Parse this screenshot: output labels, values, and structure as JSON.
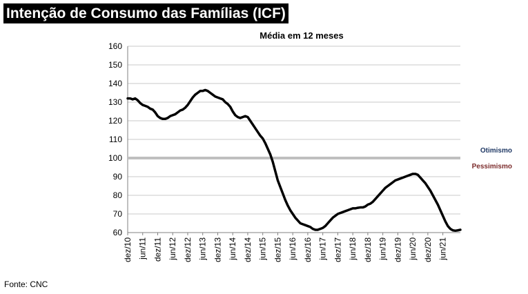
{
  "page": {
    "title": "Intenção de Consumo das Famílias (ICF)",
    "source": "Fonte: CNC"
  },
  "chart_data": {
    "type": "line",
    "title": "Média em 12 meses",
    "xlabel": "",
    "ylabel": "",
    "ylim": [
      60,
      160
    ],
    "yticks": [
      60,
      70,
      80,
      90,
      100,
      110,
      120,
      130,
      140,
      150,
      160
    ],
    "grid": true,
    "x_tick_labels": [
      "dez/10",
      "jun/11",
      "dez/11",
      "jun/12",
      "dez/12",
      "jun/13",
      "dez/13",
      "jun/14",
      "dez/14",
      "jun/15",
      "dez/15",
      "jun/16",
      "dez/16",
      "jun/17",
      "dez/17",
      "jun/18",
      "dez/18",
      "jun/19",
      "dez/19",
      "jun/20",
      "dez/20",
      "jun/21"
    ],
    "series": [
      {
        "values": [
          132,
          132,
          131.5,
          132,
          131,
          129.5,
          128.5,
          128,
          127.5,
          126.5,
          126,
          124.5,
          122.5,
          121.5,
          121,
          121,
          121.5,
          122.5,
          123,
          123.5,
          124.5,
          125.5,
          126,
          127,
          128.5,
          130.5,
          132.5,
          134,
          135,
          136,
          136,
          136.5,
          136,
          135,
          134,
          133,
          132.5,
          132,
          131.5,
          130,
          129,
          127.5,
          125,
          123,
          122,
          121.5,
          122,
          122.5,
          122,
          120,
          118,
          116,
          114,
          112,
          110.5,
          108,
          105,
          102,
          98,
          93,
          88,
          84.5,
          81,
          77.5,
          74.5,
          72,
          70,
          68,
          66.5,
          65,
          64.5,
          64,
          63.5,
          63,
          62,
          61.5,
          61.5,
          62,
          62.5,
          63.5,
          65,
          66.5,
          68,
          69,
          70,
          70.5,
          71,
          71.5,
          72,
          72.5,
          73,
          73,
          73.3,
          73.5,
          73.5,
          74,
          75,
          75.5,
          76.5,
          78,
          79.5,
          81,
          82.5,
          84,
          85,
          86,
          87,
          88,
          88.5,
          89,
          89.5,
          90,
          90.5,
          91,
          91.5,
          91.5,
          91,
          89.5,
          88,
          86.5,
          84.5,
          82.5,
          80,
          77.5,
          75,
          72,
          69,
          66,
          63.5,
          62,
          61.2,
          61,
          61.2,
          61.5
        ]
      }
    ],
    "reference_line": {
      "value": 100,
      "label_above": "Otimismo",
      "label_below": "Pessimismo"
    },
    "colors": {
      "series": "#000000",
      "reference_line": "#bfbfbf",
      "grid": "#c8c8c8",
      "otimismo": "#1f3864",
      "pessimismo": "#7b2b2b"
    }
  }
}
